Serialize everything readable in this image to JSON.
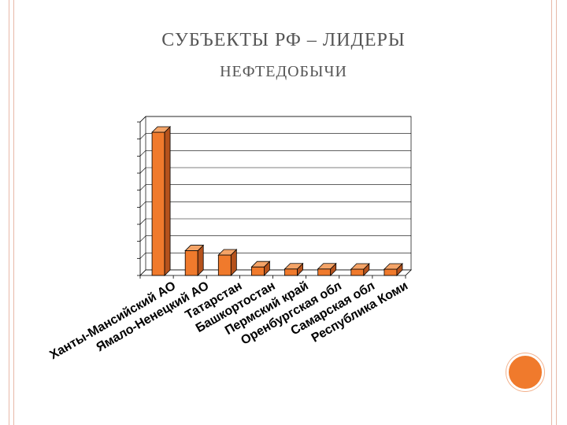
{
  "slide": {
    "title_line1_cap": "С",
    "title_line1_rest": "УБЪЕКТЫ РФ – ЛИДЕРЫ",
    "title_line2": "НЕФТЕДОБЫЧИ"
  },
  "colors": {
    "bar_front": "#f07a2c",
    "bar_top": "#f4a468",
    "bar_side": "#b5521c",
    "bar_outline": "#000000",
    "grid": "#000000",
    "accent_circle": "#f07a2c",
    "frame": "#e8b9a8"
  },
  "chart_data": {
    "type": "bar",
    "style": "3d-column",
    "categories": [
      "Ханты-Мансийский АО",
      "Ямало-Ненецкий АО",
      "Татарстан",
      "Башкортостан",
      "Пермский край",
      "Оренбургская обл",
      "Самарская обл",
      "Республика Коми"
    ],
    "values": [
      8.4,
      1.45,
      1.2,
      0.5,
      0.38,
      0.38,
      0.37,
      0.37
    ],
    "ylim": [
      0,
      9
    ],
    "grid_lines": 9,
    "grid": true,
    "legend": "none",
    "title": "",
    "xlabel": "",
    "ylabel": ""
  }
}
